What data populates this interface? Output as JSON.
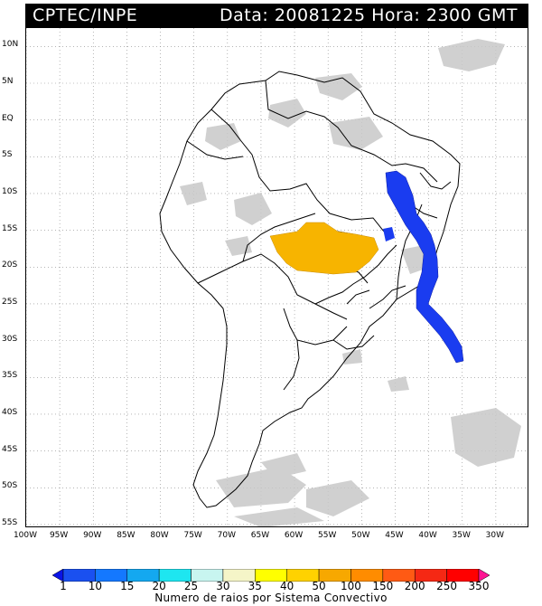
{
  "header": {
    "source": "CPTEC/INPE",
    "datetime": "Data: 20081225 Hora: 2300 GMT"
  },
  "map": {
    "lat_labels": [
      "10N",
      "5N",
      "EQ",
      "5S",
      "10S",
      "15S",
      "20S",
      "25S",
      "30S",
      "35S",
      "40S",
      "45S",
      "50S",
      "55S"
    ],
    "lat_values": [
      10,
      5,
      0,
      -5,
      -10,
      -15,
      -20,
      -25,
      -30,
      -35,
      -40,
      -45,
      -50,
      -55
    ],
    "lon_labels": [
      "100W",
      "95W",
      "90W",
      "85W",
      "80W",
      "75W",
      "70W",
      "65W",
      "60W",
      "55W",
      "50W",
      "45W",
      "40W",
      "35W",
      "30W"
    ],
    "lon_values": [
      -100,
      -95,
      -90,
      -85,
      -80,
      -75,
      -70,
      -65,
      -60,
      -55,
      -50,
      -45,
      -40,
      -35,
      -30
    ],
    "lon_range": [
      -100,
      -25
    ],
    "lat_range": [
      -55.5,
      12.5
    ],
    "grid": "dotted",
    "land_outline_color": "#000000",
    "cloud_color": "#c8c8c8",
    "convective_systems": [
      {
        "region": "central-brazil",
        "class_color": "#f7b400"
      },
      {
        "region": "eastern-brazil-coast",
        "class_color": "#1a3cf0"
      }
    ]
  },
  "colorbar": {
    "title": "Numero de raios por Sistema Convectivo",
    "levels": [
      "1",
      "10",
      "15",
      "20",
      "25",
      "30",
      "35",
      "40",
      "50",
      "100",
      "150",
      "200",
      "250",
      "350"
    ],
    "colors": [
      "#0a14e6",
      "#1a50f0",
      "#1478ff",
      "#14a8f0",
      "#1ee6f0",
      "#c8f5f0",
      "#f5f5c8",
      "#ffff00",
      "#ffd200",
      "#f7a800",
      "#ff8c00",
      "#ff5a14",
      "#f52814",
      "#ff0000",
      "#ff1493"
    ]
  }
}
